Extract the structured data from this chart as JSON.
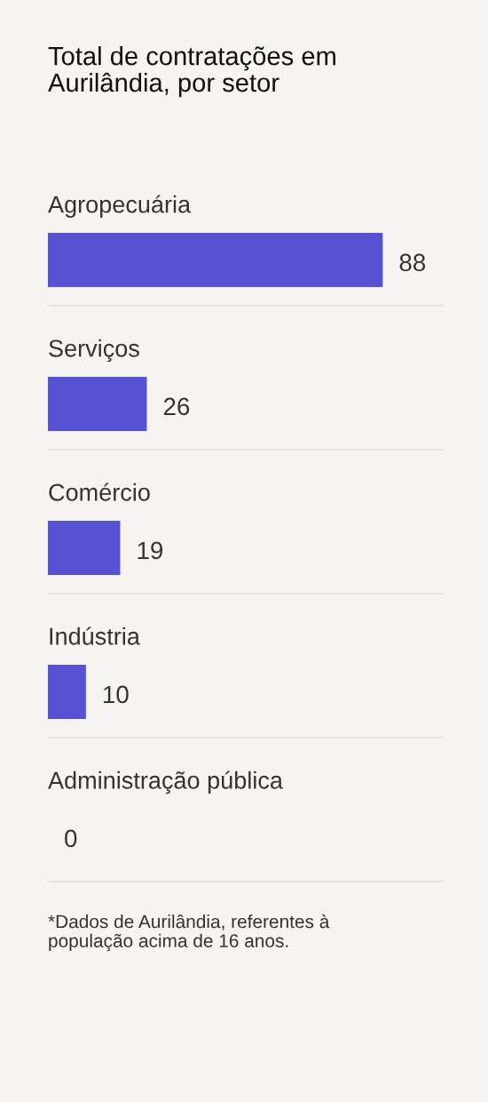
{
  "chart_data": {
    "type": "bar",
    "orientation": "horizontal",
    "title": "Total de contratações em\nAurilândia, por setor",
    "categories": [
      "Agropecuária",
      "Serviços",
      "Comércio",
      "Indústria",
      "Administração pública"
    ],
    "values": [
      88,
      26,
      19,
      10,
      0
    ],
    "color": "#5751d4",
    "xlim": [
      0,
      104
    ],
    "data_labels": true,
    "grid": "y",
    "tick_labels": "y",
    "annotations": [
      "*Dados de Aurilândia, referentes à\npopulação acima de 16 anos."
    ]
  }
}
